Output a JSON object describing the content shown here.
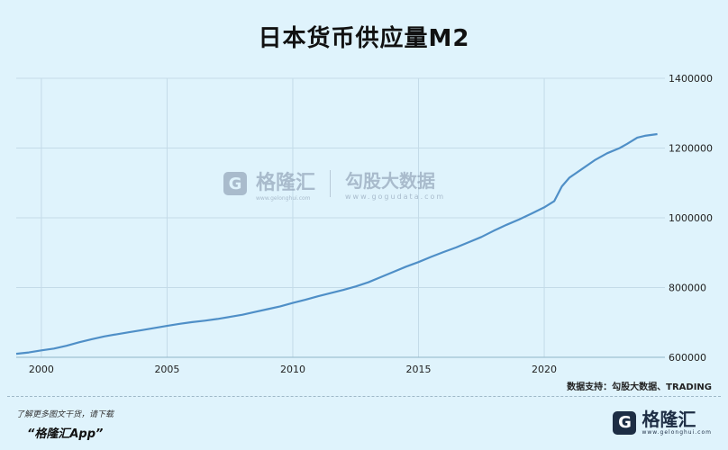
{
  "title": "日本货币供应量M2",
  "watermark": {
    "logo_letter": "G",
    "name": "格隆汇",
    "brand": "勾股大数据",
    "url": "www.gogudata.com",
    "sub": "www.gelonghui.com"
  },
  "source": "数据支持：勾股大数据、TRADING",
  "promo": {
    "line1": "了解更多图文干货，请下载",
    "line2": "“格隆汇App”"
  },
  "brand": {
    "logo_letter": "G",
    "name": "格隆汇",
    "url": "www.gelonghui.com"
  },
  "colors": {
    "background": "#dff3fc",
    "line": "#4f8fc7",
    "grid": "#c4dbe8"
  },
  "chart_data": {
    "type": "line",
    "title": "日本货币供应量M2",
    "xlabel": "",
    "ylabel": "",
    "xlim": [
      1999.0,
      2024.8
    ],
    "ylim": [
      600000,
      1400000
    ],
    "xticks": [
      2000,
      2005,
      2010,
      2015,
      2020
    ],
    "yticks": [
      600000,
      800000,
      1000000,
      1200000,
      1400000
    ],
    "grid": true,
    "series": [
      {
        "name": "",
        "x": [
          1999.0,
          1999.5,
          2000.0,
          2000.5,
          2001.0,
          2001.5,
          2002.0,
          2002.5,
          2003.0,
          2003.5,
          2004.0,
          2004.5,
          2005.0,
          2005.5,
          2006.0,
          2006.5,
          2007.0,
          2007.5,
          2008.0,
          2008.5,
          2009.0,
          2009.5,
          2010.0,
          2010.5,
          2011.0,
          2011.5,
          2012.0,
          2012.5,
          2013.0,
          2013.5,
          2014.0,
          2014.5,
          2015.0,
          2015.5,
          2016.0,
          2016.5,
          2017.0,
          2017.5,
          2018.0,
          2018.5,
          2019.0,
          2019.5,
          2020.0,
          2020.4,
          2020.7,
          2021.0,
          2021.5,
          2022.0,
          2022.5,
          2023.0,
          2023.3,
          2023.7,
          2024.0,
          2024.5
        ],
        "values": [
          610000,
          614000,
          620000,
          625000,
          633000,
          643000,
          652000,
          660000,
          666000,
          672000,
          678000,
          684000,
          690000,
          696000,
          701000,
          705000,
          710000,
          716000,
          722000,
          730000,
          738000,
          746000,
          756000,
          765000,
          775000,
          784000,
          793000,
          803000,
          815000,
          830000,
          845000,
          860000,
          873000,
          888000,
          902000,
          915000,
          930000,
          945000,
          963000,
          980000,
          995000,
          1012000,
          1030000,
          1048000,
          1090000,
          1115000,
          1140000,
          1165000,
          1185000,
          1200000,
          1212000,
          1230000,
          1235000,
          1240000
        ]
      }
    ]
  }
}
